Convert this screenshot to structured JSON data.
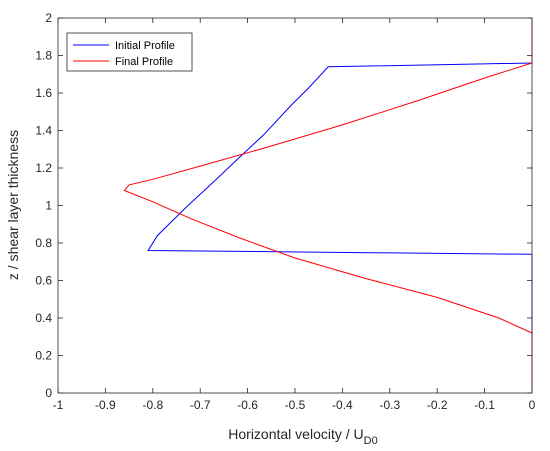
{
  "chart_data": {
    "type": "line",
    "xlabel": "Horizontal velocity / U",
    "xlabel_sub": "D0",
    "ylabel": "z / shear layer thickness",
    "xlim": [
      -1,
      0
    ],
    "ylim": [
      0,
      2
    ],
    "xticks": [
      "-1",
      "-0.9",
      "-0.8",
      "-0.7",
      "-0.6",
      "-0.5",
      "-0.4",
      "-0.3",
      "-0.2",
      "-0.1",
      "0"
    ],
    "yticks": [
      "0",
      "0.2",
      "0.4",
      "0.6",
      "0.8",
      "1",
      "1.2",
      "1.4",
      "1.6",
      "1.8",
      "2"
    ],
    "grid": false,
    "legend_position": "top-left",
    "series": [
      {
        "name": "Initial Profile",
        "color": "#0000ff",
        "x": [
          0,
          0,
          0,
          0,
          -0.81,
          -0.79,
          -0.73,
          -0.67,
          -0.62,
          -0.565,
          -0.51,
          -0.47,
          -0.43,
          0,
          0
        ],
        "y": [
          0,
          0.32,
          0.5,
          0.74,
          0.76,
          0.84,
          0.99,
          1.13,
          1.25,
          1.38,
          1.53,
          1.63,
          1.74,
          1.76,
          2
        ]
      },
      {
        "name": "Final Profile",
        "color": "#ff0000",
        "x": [
          0,
          0,
          -0.07,
          -0.2,
          -0.35,
          -0.5,
          -0.62,
          -0.72,
          -0.8,
          -0.86,
          -0.85,
          -0.8,
          -0.7,
          -0.56,
          -0.4,
          -0.24,
          -0.1,
          0,
          0
        ],
        "y": [
          0,
          0.32,
          0.4,
          0.51,
          0.61,
          0.72,
          0.83,
          0.93,
          1.02,
          1.08,
          1.11,
          1.14,
          1.21,
          1.31,
          1.43,
          1.56,
          1.68,
          1.76,
          2
        ]
      }
    ]
  }
}
